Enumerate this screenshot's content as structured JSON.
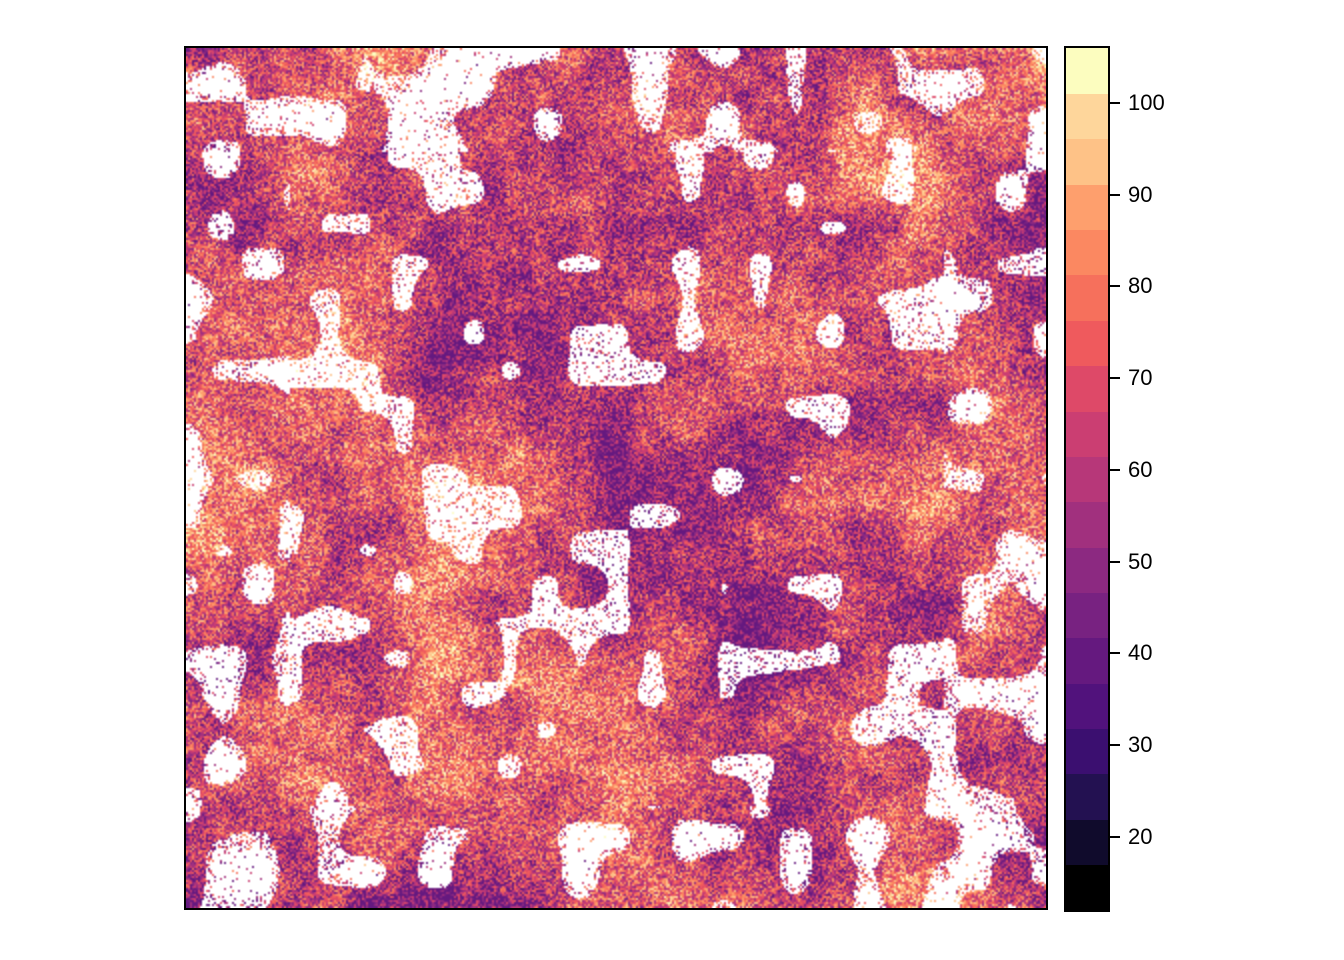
{
  "map": {
    "type": "raster",
    "background_nodata_color": "#ffffff",
    "palette": "magma",
    "legend": {
      "position": "right",
      "min": 12,
      "max": 106,
      "break_step": 5.3,
      "tick_labels": [
        "20",
        "30",
        "40",
        "50",
        "60",
        "70",
        "80",
        "90",
        "100"
      ],
      "tick_values": [
        20,
        30,
        40,
        50,
        60,
        70,
        80,
        90,
        100
      ],
      "colors": [
        "#000000",
        "#100b2c",
        "#231151",
        "#3b0f70",
        "#51127c",
        "#65197f",
        "#782281",
        "#8c2981",
        "#a1307e",
        "#b73779",
        "#cb3e72",
        "#de4968",
        "#ef5a5d",
        "#f6705c",
        "#fb8861",
        "#fe9f6d",
        "#fec287",
        "#fed69b",
        "#fcfdbf"
      ]
    }
  }
}
